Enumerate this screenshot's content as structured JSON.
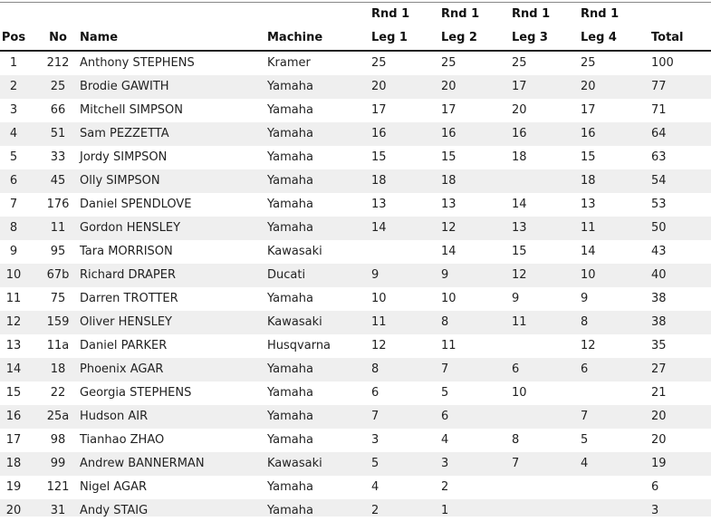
{
  "table": {
    "columns": [
      {
        "label": "Pos"
      },
      {
        "label": "No"
      },
      {
        "label": "Name"
      },
      {
        "label": "Machine"
      },
      {
        "group": "Rnd 1",
        "label": "Leg 1"
      },
      {
        "group": "Rnd 1",
        "label": "Leg 2"
      },
      {
        "group": "Rnd 1",
        "label": "Leg 3"
      },
      {
        "group": "Rnd 1",
        "label": "Leg 4"
      },
      {
        "label": "Total"
      }
    ],
    "rows": [
      [
        1,
        212,
        "Anthony STEPHENS",
        "Kramer",
        25,
        25,
        25,
        25,
        100
      ],
      [
        2,
        25,
        "Brodie GAWITH",
        "Yamaha",
        20,
        20,
        17,
        20,
        77
      ],
      [
        3,
        66,
        "Mitchell SIMPSON",
        "Yamaha",
        17,
        17,
        20,
        17,
        71
      ],
      [
        4,
        51,
        "Sam PEZZETTA",
        "Yamaha",
        16,
        16,
        16,
        16,
        64
      ],
      [
        5,
        33,
        "Jordy SIMPSON",
        "Yamaha",
        15,
        15,
        18,
        15,
        63
      ],
      [
        6,
        45,
        "Olly SIMPSON",
        "Yamaha",
        18,
        18,
        null,
        18,
        54
      ],
      [
        7,
        176,
        "Daniel SPENDLOVE",
        "Yamaha",
        13,
        13,
        14,
        13,
        53
      ],
      [
        8,
        11,
        "Gordon HENSLEY",
        "Yamaha",
        14,
        12,
        13,
        11,
        50
      ],
      [
        9,
        95,
        "Tara MORRISON",
        "Kawasaki",
        null,
        14,
        15,
        14,
        43
      ],
      [
        10,
        "67b",
        "Richard DRAPER",
        "Ducati",
        9,
        9,
        12,
        10,
        40
      ],
      [
        11,
        75,
        "Darren TROTTER",
        "Yamaha",
        10,
        10,
        9,
        9,
        38
      ],
      [
        12,
        159,
        "Oliver HENSLEY",
        "Kawasaki",
        11,
        8,
        11,
        8,
        38
      ],
      [
        13,
        "11a",
        "Daniel PARKER",
        "Husqvarna",
        12,
        11,
        null,
        12,
        35
      ],
      [
        14,
        18,
        "Phoenix AGAR",
        "Yamaha",
        8,
        7,
        6,
        6,
        27
      ],
      [
        15,
        22,
        "Georgia STEPHENS",
        "Yamaha",
        6,
        5,
        10,
        null,
        21
      ],
      [
        16,
        "25a",
        "Hudson AIR",
        "Yamaha",
        7,
        6,
        null,
        7,
        20
      ],
      [
        17,
        98,
        "Tianhao ZHAO",
        "Yamaha",
        3,
        4,
        8,
        5,
        20
      ],
      [
        18,
        99,
        "Andrew BANNERMAN",
        "Kawasaki",
        5,
        3,
        7,
        4,
        19
      ],
      [
        19,
        121,
        "Nigel AGAR",
        "Yamaha",
        4,
        2,
        null,
        null,
        6
      ],
      [
        20,
        31,
        "Andy STAIG",
        "Yamaha",
        2,
        1,
        null,
        null,
        3
      ]
    ]
  }
}
